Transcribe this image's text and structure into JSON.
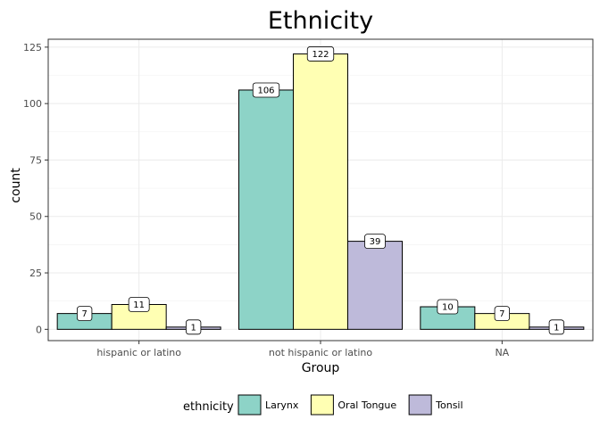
{
  "chart_data": {
    "type": "bar",
    "title": "Ethnicity",
    "xlabel": "Group",
    "ylabel": "count",
    "categories": [
      "hispanic or latino",
      "not hispanic or latino",
      "NA"
    ],
    "series": [
      {
        "name": "Larynx",
        "color": "#8DD3C7",
        "values": [
          7,
          106,
          10
        ]
      },
      {
        "name": "Oral Tongue",
        "color": "#FFFFB3",
        "values": [
          11,
          122,
          7
        ]
      },
      {
        "name": "Tonsil",
        "color": "#BEBADA",
        "values": [
          1,
          39,
          1
        ]
      }
    ],
    "ylim": [
      -5,
      128.5
    ],
    "yticks": [
      0,
      25,
      50,
      75,
      100,
      125
    ],
    "legend_title": "ethnicity",
    "legend_position": "bottom",
    "grid": true
  }
}
